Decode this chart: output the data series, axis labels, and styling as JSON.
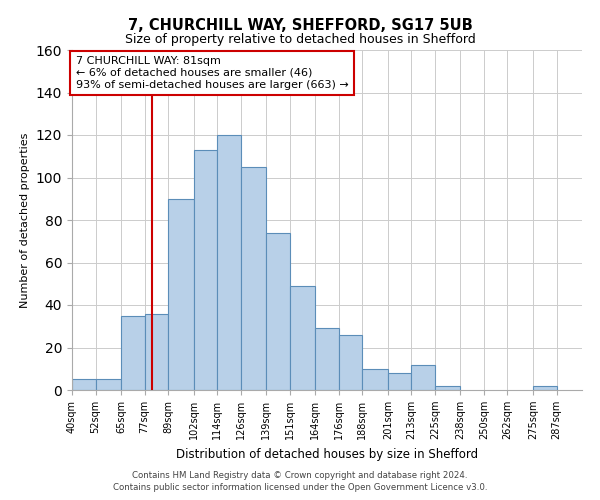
{
  "title": "7, CHURCHILL WAY, SHEFFORD, SG17 5UB",
  "subtitle": "Size of property relative to detached houses in Shefford",
  "xlabel": "Distribution of detached houses by size in Shefford",
  "ylabel": "Number of detached properties",
  "bin_labels": [
    "40sqm",
    "52sqm",
    "65sqm",
    "77sqm",
    "89sqm",
    "102sqm",
    "114sqm",
    "126sqm",
    "139sqm",
    "151sqm",
    "164sqm",
    "176sqm",
    "188sqm",
    "201sqm",
    "213sqm",
    "225sqm",
    "238sqm",
    "250sqm",
    "262sqm",
    "275sqm",
    "287sqm"
  ],
  "bin_edges": [
    40,
    52,
    65,
    77,
    89,
    102,
    114,
    126,
    139,
    151,
    164,
    176,
    188,
    201,
    213,
    225,
    238,
    250,
    262,
    275,
    287,
    300
  ],
  "counts": [
    5,
    5,
    35,
    36,
    90,
    113,
    120,
    105,
    74,
    49,
    29,
    26,
    10,
    8,
    12,
    2,
    0,
    0,
    0,
    2,
    0
  ],
  "bar_color": "#b8d0e8",
  "bar_edge_color": "#5b8db8",
  "vline_x": 81,
  "vline_color": "#cc0000",
  "annotation_line1": "7 CHURCHILL WAY: 81sqm",
  "annotation_line2": "← 6% of detached houses are smaller (46)",
  "annotation_line3": "93% of semi-detached houses are larger (663) →",
  "annotation_box_color": "#cc0000",
  "ylim": [
    0,
    160
  ],
  "yticks": [
    0,
    20,
    40,
    60,
    80,
    100,
    120,
    140,
    160
  ],
  "footer_line1": "Contains HM Land Registry data © Crown copyright and database right 2024.",
  "footer_line2": "Contains public sector information licensed under the Open Government Licence v3.0.",
  "background_color": "#ffffff",
  "grid_color": "#cccccc"
}
